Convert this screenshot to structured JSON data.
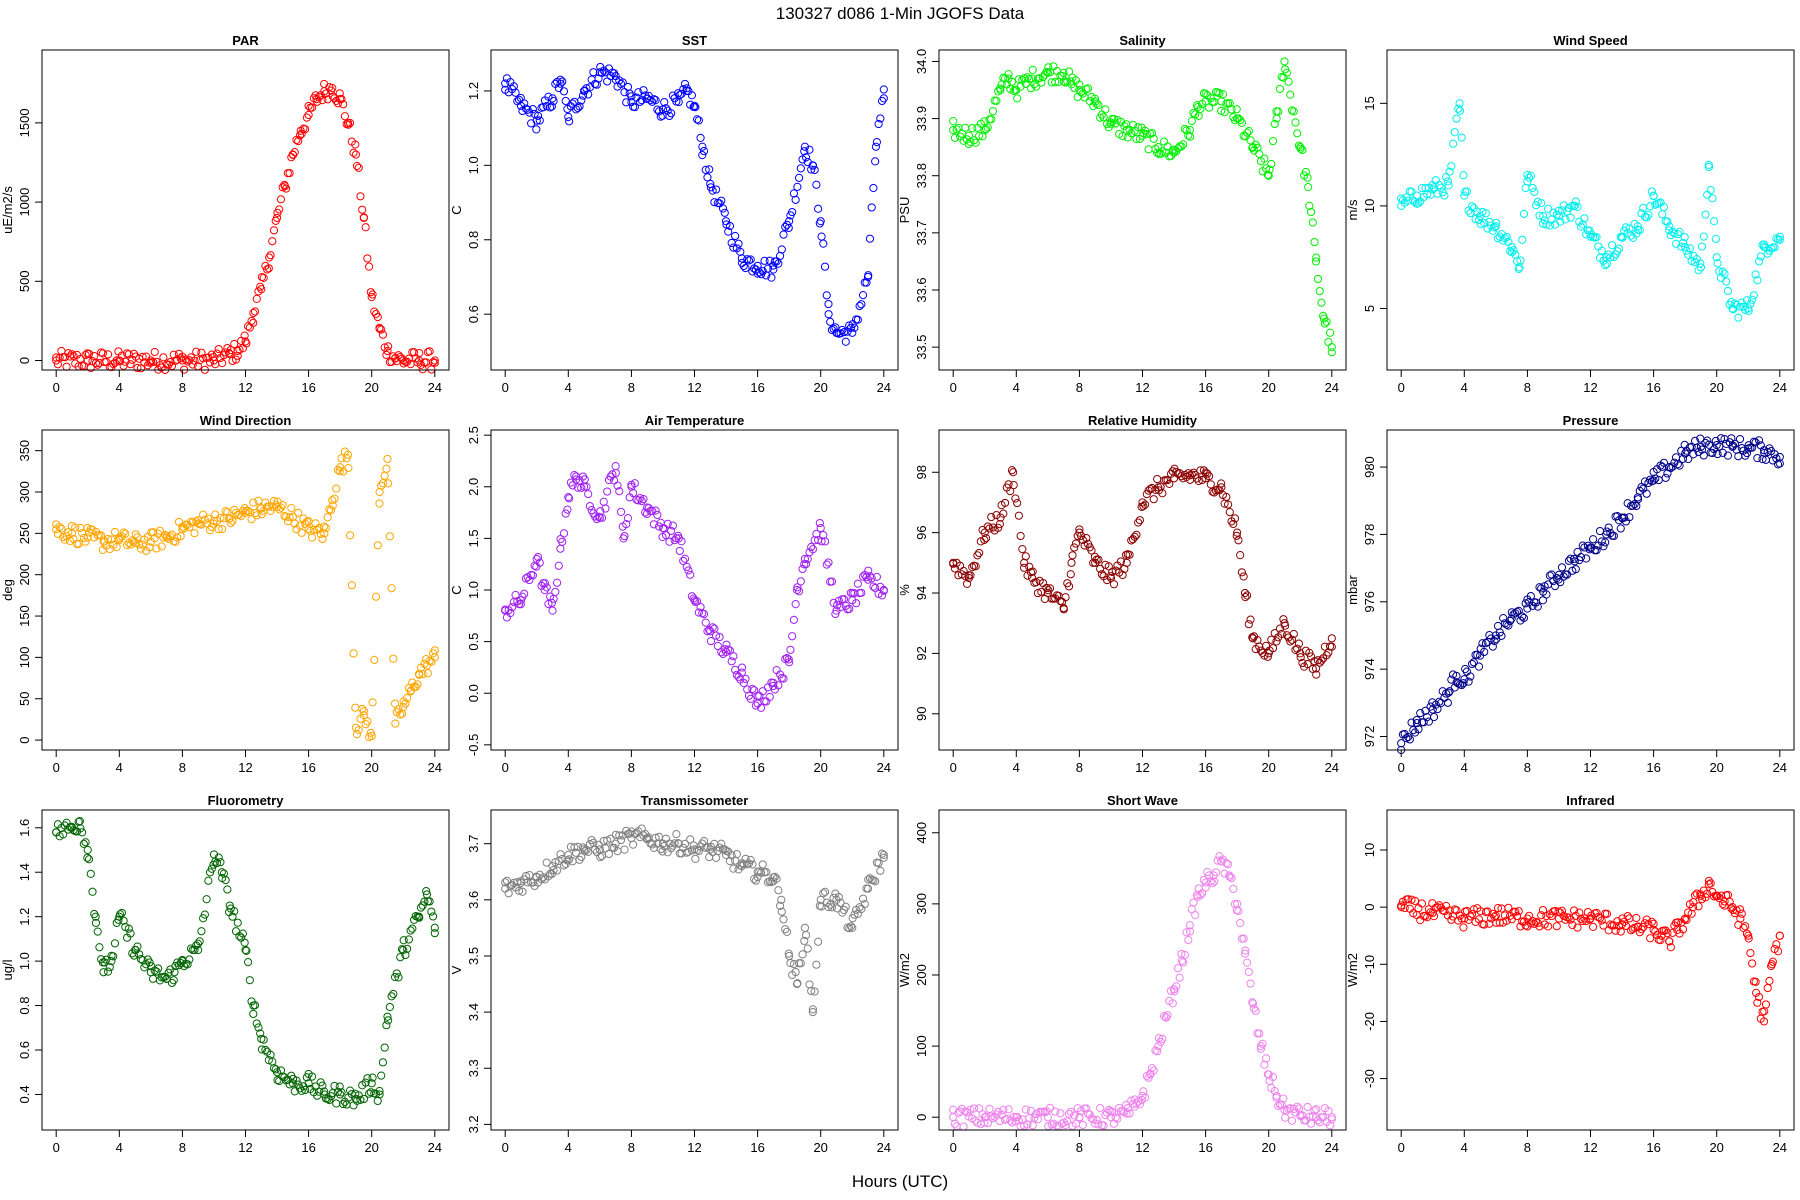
{
  "figure": {
    "title": "130327   d086   1-Min  JGOFS Data",
    "xlabel": "Hours (UTC)"
  },
  "chart_data": [
    {
      "type": "scatter",
      "title": "PAR",
      "ylabel": "uE/m2/s",
      "color": "#ff0000",
      "xlim": [
        -0.9,
        24.9
      ],
      "ylim": [
        -60,
        1960
      ],
      "xticks": [
        0,
        4,
        8,
        12,
        16,
        20,
        24
      ],
      "yticks": [
        0,
        500,
        1000,
        1500
      ],
      "x": [
        0,
        2,
        4,
        6,
        8,
        10,
        11,
        11.5,
        12,
        12.5,
        13,
        13.5,
        14,
        14.5,
        15,
        15.5,
        16,
        16.5,
        17,
        17.5,
        18,
        18.5,
        19,
        19.5,
        20,
        20.5,
        21,
        21.5,
        22,
        23,
        24
      ],
      "y": [
        0,
        0,
        0,
        0,
        0,
        0,
        40,
        60,
        120,
        300,
        450,
        650,
        900,
        1100,
        1300,
        1450,
        1550,
        1650,
        1700,
        1720,
        1650,
        1500,
        1300,
        900,
        400,
        200,
        60,
        15,
        0,
        0,
        0
      ]
    },
    {
      "type": "scatter",
      "title": "SST",
      "ylabel": "C",
      "color": "#0000ff",
      "xlim": [
        -0.9,
        24.9
      ],
      "ylim": [
        0.45,
        1.31
      ],
      "xticks": [
        0,
        4,
        8,
        12,
        16,
        20,
        24
      ],
      "yticks": [
        0.6,
        0.8,
        1.0,
        1.2
      ],
      "x": [
        0,
        1,
        2,
        3,
        3.5,
        4,
        5,
        6,
        7,
        8,
        9,
        10,
        11,
        11.5,
        12,
        12.5,
        13,
        14,
        15,
        16,
        17,
        18,
        19,
        19.5,
        20,
        20.5,
        21,
        22,
        23,
        23.5,
        24
      ],
      "y": [
        1.22,
        1.16,
        1.12,
        1.18,
        1.23,
        1.13,
        1.2,
        1.25,
        1.24,
        1.17,
        1.18,
        1.15,
        1.17,
        1.2,
        1.16,
        1.05,
        0.95,
        0.85,
        0.75,
        0.73,
        0.72,
        0.85,
        1.05,
        1.0,
        0.85,
        0.6,
        0.55,
        0.55,
        0.7,
        1.05,
        1.18
      ]
    },
    {
      "type": "scatter",
      "title": "Salinity",
      "ylabel": "PSU",
      "color": "#00ee00",
      "xlim": [
        -0.9,
        24.9
      ],
      "ylim": [
        33.46,
        34.02
      ],
      "xticks": [
        0,
        4,
        8,
        12,
        16,
        20,
        24
      ],
      "yticks": [
        33.5,
        33.6,
        33.7,
        33.8,
        33.9,
        34.0
      ],
      "x": [
        0,
        1,
        2,
        3,
        3.5,
        4,
        5,
        6,
        7,
        7.5,
        8,
        9,
        10,
        11,
        12,
        13,
        14,
        15,
        15.5,
        16,
        17,
        18,
        19,
        20,
        20.5,
        21,
        22,
        22.5,
        23,
        23.5,
        24
      ],
      "y": [
        33.88,
        33.87,
        33.88,
        33.95,
        33.97,
        33.95,
        33.97,
        33.98,
        33.98,
        33.96,
        33.95,
        33.93,
        33.89,
        33.88,
        33.87,
        33.85,
        33.84,
        33.88,
        33.92,
        33.93,
        33.93,
        33.9,
        33.85,
        33.8,
        33.9,
        34.0,
        33.85,
        33.78,
        33.65,
        33.55,
        33.5
      ]
    },
    {
      "type": "scatter",
      "title": "Wind Speed",
      "ylabel": "m/s",
      "color": "#00eeee",
      "xlim": [
        -0.9,
        24.9
      ],
      "ylim": [
        2,
        17.6
      ],
      "xticks": [
        0,
        4,
        8,
        12,
        16,
        20,
        24
      ],
      "yticks": [
        5,
        10,
        15
      ],
      "x": [
        0,
        1,
        2,
        3,
        3.7,
        4,
        5,
        6,
        7,
        7.5,
        8,
        9,
        10,
        11,
        12,
        13,
        14,
        15,
        16,
        17,
        18,
        19,
        19.5,
        20,
        21,
        22,
        23,
        24
      ],
      "y": [
        10,
        10.5,
        10.8,
        11,
        15,
        10.5,
        9.5,
        9,
        8,
        7,
        11.5,
        9.5,
        9.5,
        10,
        8.5,
        7.5,
        8.5,
        9,
        10.5,
        9,
        8,
        7,
        12,
        7.5,
        5,
        5,
        8,
        8.5
      ]
    },
    {
      "type": "scatter",
      "title": "Wind Direction",
      "ylabel": "deg",
      "color": "#ffa500",
      "xlim": [
        -0.9,
        24.9
      ],
      "ylim": [
        -12,
        375
      ],
      "xticks": [
        0,
        4,
        8,
        12,
        16,
        20,
        24
      ],
      "yticks": [
        0,
        50,
        100,
        150,
        200,
        250,
        300,
        350
      ],
      "x": [
        0,
        1,
        2,
        3,
        4,
        5,
        6,
        7,
        8,
        9,
        10,
        11,
        12,
        13,
        14,
        15,
        16,
        17,
        17.5,
        18,
        18.5,
        19,
        19.5,
        20,
        20.5,
        21,
        21.5,
        22,
        22.5,
        23,
        23.5,
        24
      ],
      "y": [
        255,
        250,
        245,
        240,
        242,
        238,
        240,
        245,
        255,
        262,
        265,
        268,
        275,
        280,
        282,
        270,
        255,
        250,
        290,
        330,
        345,
        15,
        30,
        5,
        300,
        340,
        20,
        40,
        60,
        80,
        90,
        100
      ]
    },
    {
      "type": "scatter",
      "title": "Air Temperature",
      "ylabel": "C",
      "color": "#a020f0",
      "xlim": [
        -0.9,
        24.9
      ],
      "ylim": [
        -0.55,
        2.55
      ],
      "xticks": [
        0,
        4,
        8,
        12,
        16,
        20,
        24
      ],
      "yticks": [
        -0.5,
        0.0,
        0.5,
        1.0,
        1.5,
        2.0,
        2.5
      ],
      "x": [
        0,
        1,
        2,
        2.5,
        3,
        3.5,
        4,
        4.5,
        5,
        6,
        7,
        7.5,
        8,
        9,
        10,
        11,
        12,
        13,
        14,
        15,
        16,
        17,
        18,
        18.5,
        19,
        20,
        21,
        22,
        23,
        24
      ],
      "y": [
        0.8,
        0.9,
        1.3,
        1.0,
        0.8,
        1.4,
        1.9,
        2.1,
        2.0,
        1.7,
        2.2,
        1.5,
        2.0,
        1.8,
        1.6,
        1.5,
        0.9,
        0.6,
        0.4,
        0.2,
        -0.1,
        0.1,
        0.3,
        1.0,
        1.3,
        1.6,
        0.8,
        0.9,
        1.1,
        1.0
      ]
    },
    {
      "type": "scatter",
      "title": "Relative Humidity",
      "ylabel": "%",
      "color": "#8b0000",
      "xlim": [
        -0.9,
        24.9
      ],
      "ylim": [
        88.8,
        99.4
      ],
      "xticks": [
        0,
        4,
        8,
        12,
        16,
        20,
        24
      ],
      "yticks": [
        90,
        92,
        94,
        96,
        98
      ],
      "x": [
        0,
        1,
        2,
        3,
        3.8,
        4.5,
        5,
        6,
        7,
        7.5,
        8,
        9,
        10,
        11,
        12,
        13,
        14,
        15,
        16,
        17,
        18,
        18.5,
        19,
        20,
        21,
        22,
        23,
        24
      ],
      "y": [
        95,
        94.5,
        96,
        96.5,
        98,
        95,
        94.5,
        94,
        93.5,
        95,
        96,
        95,
        94.5,
        95,
        97,
        97.5,
        97.8,
        97.9,
        97.8,
        97.5,
        96,
        94,
        92.5,
        92,
        93,
        92,
        91.5,
        92.5
      ]
    },
    {
      "type": "scatter",
      "title": "Pressure",
      "ylabel": "mbar",
      "color": "#00008b",
      "xlim": [
        -0.9,
        24.9
      ],
      "ylim": [
        971.6,
        981.1
      ],
      "xticks": [
        0,
        4,
        8,
        12,
        16,
        20,
        24
      ],
      "yticks": [
        972,
        974,
        976,
        978,
        980
      ],
      "x": [
        0,
        1,
        2,
        3,
        3.5,
        4,
        5,
        6,
        7,
        8,
        9,
        10,
        11,
        12,
        13,
        14,
        15,
        16,
        17,
        18,
        19,
        20,
        21,
        22,
        23,
        24
      ],
      "y": [
        971.8,
        972.4,
        972.8,
        973.3,
        973.8,
        973.7,
        974.4,
        975.0,
        975.5,
        975.8,
        976.3,
        976.8,
        977.2,
        977.6,
        978.0,
        978.5,
        979.1,
        979.6,
        980.0,
        980.4,
        980.6,
        980.65,
        980.6,
        980.55,
        980.5,
        980.3
      ]
    },
    {
      "type": "scatter",
      "title": "Fluorometry",
      "ylabel": "ug/l",
      "color": "#006400",
      "xlim": [
        -0.9,
        24.9
      ],
      "ylim": [
        0.24,
        1.68
      ],
      "xticks": [
        0,
        4,
        8,
        12,
        16,
        20,
        24
      ],
      "yticks": [
        0.4,
        0.6,
        0.8,
        1.0,
        1.2,
        1.4,
        1.6
      ],
      "x": [
        0,
        1,
        1.5,
        2,
        2.5,
        3,
        3.5,
        4,
        5,
        6,
        7,
        7.5,
        8,
        9,
        10,
        10.5,
        11,
        12,
        12.5,
        13,
        14,
        15,
        16,
        17,
        18,
        19,
        20,
        20.5,
        21,
        22,
        23,
        23.5,
        24
      ],
      "y": [
        1.58,
        1.6,
        1.63,
        1.5,
        1.2,
        0.95,
        1.0,
        1.2,
        1.05,
        0.95,
        0.92,
        0.95,
        1.0,
        1.05,
        1.48,
        1.4,
        1.25,
        1.05,
        0.8,
        0.65,
        0.5,
        0.45,
        0.45,
        0.4,
        0.4,
        0.38,
        0.45,
        0.4,
        0.75,
        1.05,
        1.2,
        1.3,
        1.15
      ]
    },
    {
      "type": "scatter",
      "title": "Transmissometer",
      "ylabel": "V",
      "color": "#808080",
      "xlim": [
        -0.9,
        24.9
      ],
      "ylim": [
        3.19,
        3.76
      ],
      "xticks": [
        0,
        4,
        8,
        12,
        16,
        20,
        24
      ],
      "yticks": [
        3.2,
        3.3,
        3.4,
        3.5,
        3.6,
        3.7
      ],
      "x": [
        0,
        1,
        2,
        3,
        4,
        5,
        6,
        7,
        8,
        9,
        10,
        11,
        12,
        13,
        14,
        15,
        16,
        17,
        17.5,
        18,
        18.5,
        19,
        19.5,
        20,
        21,
        22,
        23,
        24
      ],
      "y": [
        3.62,
        3.63,
        3.64,
        3.66,
        3.68,
        3.69,
        3.69,
        3.7,
        3.71,
        3.71,
        3.7,
        3.7,
        3.69,
        3.69,
        3.68,
        3.66,
        3.65,
        3.64,
        3.6,
        3.5,
        3.45,
        3.55,
        3.4,
        3.6,
        3.6,
        3.55,
        3.62,
        3.68
      ]
    },
    {
      "type": "scatter",
      "title": "Short Wave",
      "ylabel": "W/m2",
      "color": "#ee82ee",
      "xlim": [
        -0.9,
        24.9
      ],
      "ylim": [
        -18,
        432
      ],
      "xticks": [
        0,
        4,
        8,
        12,
        16,
        20,
        24
      ],
      "yticks": [
        0,
        100,
        200,
        300,
        400
      ],
      "x": [
        0,
        2,
        4,
        6,
        8,
        10,
        11,
        11.5,
        12,
        12.5,
        13,
        13.5,
        14,
        14.5,
        15,
        15.5,
        16,
        16.5,
        17,
        17.5,
        18,
        18.5,
        19,
        19.5,
        20,
        20.5,
        21,
        22,
        23,
        24
      ],
      "y": [
        0,
        0,
        0,
        0,
        0,
        0,
        5,
        15,
        30,
        60,
        100,
        140,
        180,
        220,
        270,
        310,
        330,
        340,
        360,
        340,
        300,
        230,
        160,
        100,
        60,
        30,
        10,
        3,
        0,
        0
      ]
    },
    {
      "type": "scatter",
      "title": "Infrared",
      "ylabel": "W/m2",
      "color": "#ff0000",
      "xlim": [
        -0.9,
        24.9
      ],
      "ylim": [
        -39,
        17
      ],
      "xticks": [
        0,
        4,
        8,
        12,
        16,
        20,
        24
      ],
      "yticks": [
        -30,
        -20,
        -10,
        0,
        10
      ],
      "x": [
        0,
        2,
        4,
        6,
        8,
        10,
        12,
        14,
        15,
        16,
        16.5,
        17,
        17.5,
        18,
        18.5,
        19,
        19.5,
        20,
        20.5,
        21,
        21.5,
        22,
        22.5,
        23,
        23.5,
        24
      ],
      "y": [
        0,
        -1,
        -2,
        -1.5,
        -2,
        -2,
        -2,
        -3,
        -3.5,
        -4,
        -5,
        -6,
        -4,
        -2,
        0,
        2,
        4,
        2,
        1,
        0,
        -2,
        -5,
        -15,
        -20,
        -10,
        -5
      ]
    }
  ]
}
